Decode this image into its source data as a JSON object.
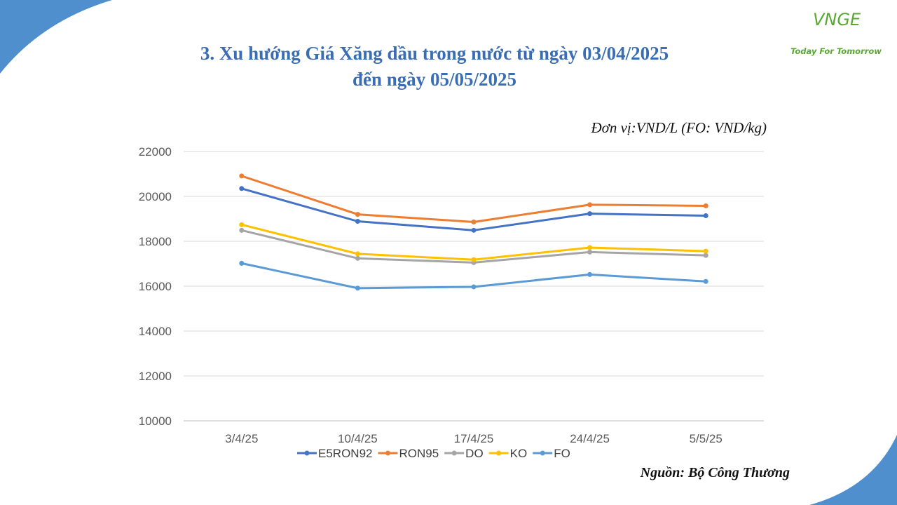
{
  "title_line1": "3. Xu hướng Giá Xăng dầu trong nước từ ngày 03/04/2025",
  "title_line2": "đến ngày 05/05/2025",
  "unit_note": "Đơn vị:VND/L (FO: VND/kg)",
  "source_note": "Nguồn: Bộ Công Thương",
  "logo": {
    "brand": "VNGE",
    "slogan": "Today For Tomorrow"
  },
  "colors": {
    "accent_blue": "#3a6db3",
    "logo_green": "#5aa832",
    "corner_blue": "#4f8fce"
  },
  "chart_data": {
    "type": "line",
    "categories": [
      "3/4/25",
      "10/4/25",
      "17/4/25",
      "24/4/25",
      "5/5/25"
    ],
    "ylim": [
      10000,
      22000
    ],
    "yticks": [
      10000,
      12000,
      14000,
      16000,
      18000,
      20000,
      22000
    ],
    "grid": true,
    "legend": "bottom",
    "series": [
      {
        "name": "E5RON92",
        "color": "#4472c4",
        "values": [
          20350,
          18890,
          18490,
          19230,
          19140
        ]
      },
      {
        "name": "RON95",
        "color": "#ed7d31",
        "values": [
          20910,
          19200,
          18860,
          19630,
          19580
        ]
      },
      {
        "name": "DO",
        "color": "#a5a5a5",
        "values": [
          18490,
          17240,
          17050,
          17520,
          17370
        ]
      },
      {
        "name": "KO",
        "color": "#ffc000",
        "values": [
          18740,
          17440,
          17180,
          17720,
          17560
        ]
      },
      {
        "name": "FO",
        "color": "#5b9bd5",
        "values": [
          17020,
          15910,
          15970,
          16520,
          16210
        ]
      }
    ]
  }
}
